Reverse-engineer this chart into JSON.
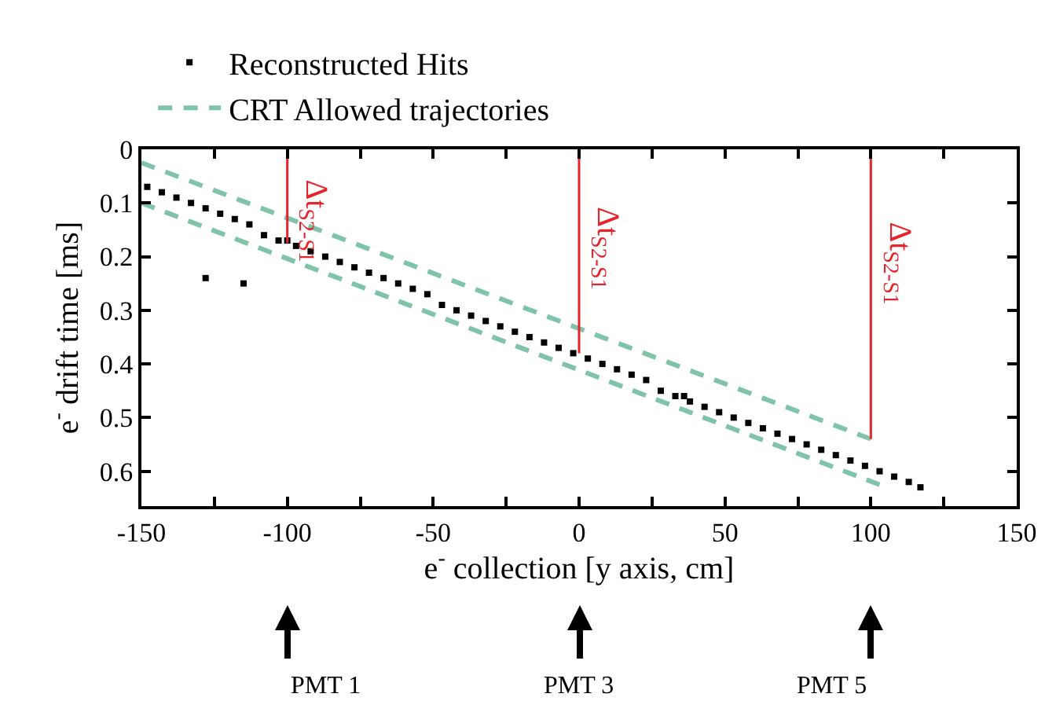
{
  "chart_data": {
    "type": "scatter",
    "xlabel": "e$^{-}$ collection [y axis, cm]",
    "ylabel": "e$^{-}$ drift time [ms]",
    "series": [
      {
        "name": "Reconstructed Hits",
        "type": "scatter",
        "marker": "square",
        "color": "#000000",
        "x": [
          -148,
          -143,
          -138,
          -133,
          -128,
          -123,
          -118,
          -113,
          -108,
          -103,
          -100,
          -97,
          -92,
          -87,
          -82,
          -77,
          -72,
          -67,
          -62,
          -57,
          -52,
          -47,
          -42,
          -37,
          -32,
          -27,
          -22,
          -17,
          -12,
          -7,
          -2,
          3,
          8,
          13,
          18,
          23,
          28,
          33,
          36,
          38,
          43,
          48,
          53,
          58,
          63,
          68,
          73,
          78,
          83,
          88,
          93,
          98,
          103,
          108,
          113,
          117,
          -128,
          -115
        ],
        "values": [
          0.07,
          0.08,
          0.09,
          0.1,
          0.11,
          0.12,
          0.13,
          0.14,
          0.16,
          0.17,
          0.17,
          0.18,
          0.19,
          0.2,
          0.21,
          0.22,
          0.23,
          0.24,
          0.25,
          0.26,
          0.27,
          0.29,
          0.3,
          0.31,
          0.32,
          0.33,
          0.34,
          0.35,
          0.36,
          0.37,
          0.38,
          0.39,
          0.4,
          0.41,
          0.42,
          0.43,
          0.45,
          0.46,
          0.46,
          0.47,
          0.48,
          0.49,
          0.5,
          0.51,
          0.52,
          0.53,
          0.54,
          0.55,
          0.56,
          0.57,
          0.58,
          0.59,
          0.6,
          0.61,
          0.62,
          0.63,
          0.24,
          0.25
        ]
      },
      {
        "name": "CRT Allowed trajectories",
        "type": "line",
        "line_style": "dashed",
        "color": "#7fc4a8",
        "x": [
          -150,
          100
        ],
        "values": [
          0.025,
          0.54
        ]
      },
      {
        "type": "line",
        "line_style": "dashed",
        "color": "#7fc4a8",
        "x": [
          -150,
          103
        ],
        "values": [
          0.1,
          0.625
        ]
      },
      {
        "type": "line",
        "line_style": "solid",
        "color": "#e8232a",
        "x": [
          -100,
          -100
        ],
        "values": [
          0,
          0.175
        ]
      },
      {
        "type": "line",
        "line_style": "solid",
        "color": "#e8232a",
        "x": [
          0,
          0
        ],
        "values": [
          0,
          0.38
        ]
      },
      {
        "type": "line",
        "line_style": "solid",
        "color": "#e8232a",
        "x": [
          100,
          100
        ],
        "values": [
          0,
          0.54
        ]
      }
    ],
    "xlim": [
      -150,
      150
    ],
    "xticks": [
      -150,
      {
        "value": -125,
        "label": null
      },
      -100,
      {
        "value": -75,
        "label": null
      },
      -50,
      {
        "value": -25,
        "label": null
      },
      0,
      {
        "value": 25,
        "label": null
      },
      50,
      {
        "value": 75,
        "label": null
      },
      100,
      {
        "value": 125,
        "label": null
      },
      150
    ],
    "ylim": [
      0.665,
      0
    ],
    "yticks": [
      0,
      0.1,
      0.2,
      0.3,
      0.4,
      0.5,
      0.6
    ],
    "grid": false,
    "legend": "top left",
    "annotations": [
      {
        "text": "Δt$_{S2-S1}$",
        "x": -100,
        "y": 0.05
      },
      {
        "text": "Δt$_{S2-S1}$",
        "x": 0,
        "y": 0.1
      },
      {
        "text": "Δt$_{S2-S1}$",
        "x": 100,
        "y": 0.13
      },
      "PMT 1",
      "PMT 3",
      "PMT 5"
    ]
  }
}
